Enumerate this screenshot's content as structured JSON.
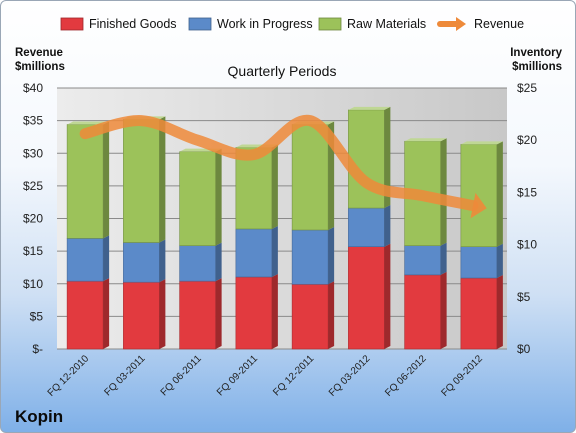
{
  "company": "Kopin",
  "chart_data": {
    "type": "bar",
    "stacked": true,
    "title": "Quarterly Periods",
    "left_axis_label": [
      "Revenue",
      "$millions"
    ],
    "right_axis_label": [
      "Inventory",
      "$millions"
    ],
    "categories": [
      "FQ 12-2010",
      "FQ 03-2011",
      "FQ 06-2011",
      "FQ 09-2011",
      "FQ 12-2011",
      "FQ 03-2012",
      "FQ 06-2012",
      "FQ 09-2012"
    ],
    "series": [
      {
        "name": "Finished Goods",
        "axis": "right",
        "color": "#e23a3f",
        "values": [
          6.5,
          6.4,
          6.5,
          6.9,
          6.2,
          9.8,
          7.1,
          6.8
        ]
      },
      {
        "name": "Work in Progress",
        "axis": "right",
        "color": "#5b8ac9",
        "values": [
          4.1,
          3.8,
          3.4,
          4.6,
          5.2,
          3.7,
          2.8,
          3.0
        ]
      },
      {
        "name": "Raw Materials",
        "axis": "right",
        "color": "#9cc25a",
        "values": [
          10.9,
          11.8,
          9.0,
          7.8,
          10.1,
          9.4,
          10.0,
          9.8
        ]
      }
    ],
    "line_series": {
      "name": "Revenue",
      "axis": "left",
      "color": "#ee8a3a",
      "values": [
        33.0,
        35.0,
        32.0,
        29.8,
        35.0,
        25.5,
        23.5,
        21.8
      ]
    },
    "left_axis": {
      "min": 0,
      "max": 40,
      "step": 5,
      "tick_labels": [
        "$-",
        "$5",
        "$10",
        "$15",
        "$20",
        "$25",
        "$30",
        "$35",
        "$40"
      ]
    },
    "right_axis": {
      "min": 0,
      "max": 25,
      "step": 5,
      "tick_labels": [
        "$0",
        "$5",
        "$10",
        "$15",
        "$20",
        "$25"
      ]
    },
    "grid": true,
    "legend_position": "top"
  }
}
